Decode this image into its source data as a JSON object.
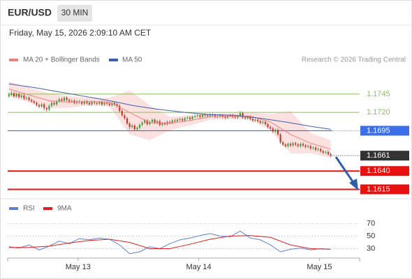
{
  "header": {
    "symbol": "EUR/USD",
    "interval": "30 MIN",
    "timestamp": "Friday, May 15, 2026 2:09:10 AM CET"
  },
  "chart_data": [
    {
      "type": "candlestick",
      "source": "Research © 2026 Trading Central",
      "xlim": [
        0,
        140
      ],
      "ylim": [
        1.1604,
        1.1783
      ],
      "up_color": "#3f9a3f",
      "down_color": "#c0392b",
      "resistance": [
        1.1745,
        {
          "value": 1.172,
          "label": "1.1720"
        }
      ],
      "resistance_color": "#8cc152",
      "pivot": 1.1695,
      "pivot_color": "#3b6ee8",
      "last_price": 1.1661,
      "last_price_color": "#333333",
      "support": [
        {
          "value": 1.164,
          "label": "1.1640"
        },
        1.1615
      ],
      "support_color": "#e8110f",
      "ohlc": [
        [
          1.1742,
          1.1747,
          1.174,
          1.1744
        ],
        [
          1.1744,
          1.1749,
          1.1742,
          1.1746
        ],
        [
          1.1746,
          1.1748,
          1.174,
          1.1742
        ],
        [
          1.1742,
          1.1747,
          1.174,
          1.1745
        ],
        [
          1.1745,
          1.1747,
          1.1739,
          1.1741
        ],
        [
          1.1741,
          1.1745,
          1.1739,
          1.1743
        ],
        [
          1.1743,
          1.1745,
          1.1737,
          1.1739
        ],
        [
          1.1739,
          1.1742,
          1.1737,
          1.174
        ],
        [
          1.174,
          1.1742,
          1.1735,
          1.1737
        ],
        [
          1.1737,
          1.1739,
          1.1733,
          1.1735
        ],
        [
          1.1735,
          1.1737,
          1.1731,
          1.1733
        ],
        [
          1.1733,
          1.1735,
          1.1728,
          1.173
        ],
        [
          1.173,
          1.1732,
          1.1726,
          1.1728
        ],
        [
          1.1728,
          1.1733,
          1.1726,
          1.1731
        ],
        [
          1.1731,
          1.1733,
          1.1723,
          1.1726
        ],
        [
          1.1726,
          1.1728,
          1.1721,
          1.1724
        ],
        [
          1.1724,
          1.1731,
          1.1722,
          1.1729
        ],
        [
          1.1729,
          1.1735,
          1.1727,
          1.1733
        ],
        [
          1.1733,
          1.1735,
          1.1729,
          1.1731
        ],
        [
          1.1731,
          1.1737,
          1.1729,
          1.1735
        ],
        [
          1.1735,
          1.174,
          1.1733,
          1.1738
        ],
        [
          1.1738,
          1.174,
          1.1734,
          1.1736
        ],
        [
          1.1736,
          1.1742,
          1.1734,
          1.174
        ],
        [
          1.174,
          1.1742,
          1.1735,
          1.1737
        ],
        [
          1.1737,
          1.1739,
          1.1733,
          1.1735
        ],
        [
          1.1735,
          1.1738,
          1.1733,
          1.1736
        ],
        [
          1.1736,
          1.1738,
          1.1731,
          1.1733
        ],
        [
          1.1733,
          1.1737,
          1.1731,
          1.1735
        ],
        [
          1.1735,
          1.1737,
          1.1732,
          1.1734
        ],
        [
          1.1734,
          1.1736,
          1.173,
          1.1732
        ],
        [
          1.1732,
          1.1737,
          1.173,
          1.1735
        ],
        [
          1.1735,
          1.1737,
          1.1731,
          1.1733
        ],
        [
          1.1733,
          1.1735,
          1.1729,
          1.1731
        ],
        [
          1.1731,
          1.1736,
          1.1729,
          1.1734
        ],
        [
          1.1734,
          1.1736,
          1.1731,
          1.1733
        ],
        [
          1.1733,
          1.1735,
          1.173,
          1.1732
        ],
        [
          1.1732,
          1.1736,
          1.173,
          1.1734
        ],
        [
          1.1734,
          1.1736,
          1.1729,
          1.1731
        ],
        [
          1.1731,
          1.1735,
          1.1729,
          1.1733
        ],
        [
          1.1733,
          1.1735,
          1.173,
          1.1732
        ],
        [
          1.1732,
          1.1734,
          1.1728,
          1.173
        ],
        [
          1.173,
          1.1735,
          1.1728,
          1.1733
        ],
        [
          1.1733,
          1.1735,
          1.1729,
          1.1731
        ],
        [
          1.1731,
          1.1733,
          1.1727,
          1.1729
        ],
        [
          1.1729,
          1.1731,
          1.172,
          1.1722
        ],
        [
          1.1722,
          1.1724,
          1.1714,
          1.1716
        ],
        [
          1.1716,
          1.1718,
          1.171,
          1.1712
        ],
        [
          1.1712,
          1.1714,
          1.1703,
          1.1705
        ],
        [
          1.1705,
          1.1707,
          1.1697,
          1.17
        ],
        [
          1.17,
          1.1704,
          1.1698,
          1.1702
        ],
        [
          1.1702,
          1.1704,
          1.1695,
          1.1697
        ],
        [
          1.1697,
          1.1701,
          1.1695,
          1.1699
        ],
        [
          1.1699,
          1.1705,
          1.1697,
          1.1703
        ],
        [
          1.1703,
          1.1708,
          1.1701,
          1.1706
        ],
        [
          1.1706,
          1.1711,
          1.1704,
          1.1709
        ],
        [
          1.1709,
          1.1711,
          1.1702,
          1.1704
        ],
        [
          1.1704,
          1.1709,
          1.1702,
          1.1707
        ],
        [
          1.1707,
          1.1712,
          1.1705,
          1.171
        ],
        [
          1.171,
          1.1712,
          1.1704,
          1.1706
        ],
        [
          1.1706,
          1.171,
          1.1704,
          1.1708
        ],
        [
          1.1708,
          1.171,
          1.1701,
          1.1703
        ],
        [
          1.1703,
          1.1707,
          1.1701,
          1.1705
        ],
        [
          1.1705,
          1.1707,
          1.1702,
          1.1704
        ],
        [
          1.1704,
          1.1709,
          1.1702,
          1.1707
        ],
        [
          1.1707,
          1.1709,
          1.1704,
          1.1706
        ],
        [
          1.1706,
          1.1711,
          1.1704,
          1.1709
        ],
        [
          1.1709,
          1.1711,
          1.1706,
          1.1708
        ],
        [
          1.1708,
          1.1712,
          1.1706,
          1.171
        ],
        [
          1.171,
          1.1713,
          1.1708,
          1.1711
        ],
        [
          1.1711,
          1.1713,
          1.1707,
          1.1709
        ],
        [
          1.1709,
          1.1714,
          1.1707,
          1.1712
        ],
        [
          1.1712,
          1.1715,
          1.171,
          1.1713
        ],
        [
          1.1713,
          1.1715,
          1.1709,
          1.1711
        ],
        [
          1.1711,
          1.1716,
          1.1709,
          1.1714
        ],
        [
          1.1714,
          1.1717,
          1.1712,
          1.1715
        ],
        [
          1.1715,
          1.1718,
          1.1713,
          1.1716
        ],
        [
          1.1716,
          1.1718,
          1.1712,
          1.1714
        ],
        [
          1.1714,
          1.1719,
          1.1712,
          1.1717
        ],
        [
          1.1717,
          1.1719,
          1.1714,
          1.1716
        ],
        [
          1.1716,
          1.1718,
          1.1713,
          1.1715
        ],
        [
          1.1715,
          1.1719,
          1.1713,
          1.1717
        ],
        [
          1.1717,
          1.1719,
          1.1714,
          1.1716
        ],
        [
          1.1716,
          1.1718,
          1.1712,
          1.1714
        ],
        [
          1.1714,
          1.1717,
          1.1712,
          1.1715
        ],
        [
          1.1715,
          1.1718,
          1.1713,
          1.1716
        ],
        [
          1.1716,
          1.1718,
          1.1712,
          1.1714
        ],
        [
          1.1714,
          1.1716,
          1.1711,
          1.1713
        ],
        [
          1.1713,
          1.1717,
          1.1711,
          1.1715
        ],
        [
          1.1715,
          1.1718,
          1.1713,
          1.1716
        ],
        [
          1.1716,
          1.1718,
          1.1712,
          1.1714
        ],
        [
          1.1714,
          1.1716,
          1.1711,
          1.1713
        ],
        [
          1.1713,
          1.1717,
          1.1711,
          1.1715
        ],
        [
          1.1715,
          1.1722,
          1.1713,
          1.1719
        ],
        [
          1.1719,
          1.1721,
          1.1711,
          1.1713
        ],
        [
          1.1713,
          1.1715,
          1.171,
          1.1712
        ],
        [
          1.1712,
          1.1716,
          1.171,
          1.1714
        ],
        [
          1.1714,
          1.1716,
          1.1709,
          1.1711
        ],
        [
          1.1711,
          1.1713,
          1.1707,
          1.1709
        ],
        [
          1.1709,
          1.1712,
          1.1707,
          1.171
        ],
        [
          1.171,
          1.1712,
          1.1706,
          1.1708
        ],
        [
          1.1708,
          1.171,
          1.1704,
          1.1706
        ],
        [
          1.1706,
          1.1709,
          1.1704,
          1.1707
        ],
        [
          1.1707,
          1.1709,
          1.1702,
          1.1704
        ],
        [
          1.1704,
          1.1706,
          1.1698,
          1.17
        ],
        [
          1.17,
          1.1702,
          1.1696,
          1.1698
        ],
        [
          1.1698,
          1.17,
          1.1692,
          1.1694
        ],
        [
          1.1694,
          1.1698,
          1.1692,
          1.1696
        ],
        [
          1.1696,
          1.1698,
          1.1688,
          1.169
        ],
        [
          1.169,
          1.1692,
          1.1677,
          1.1679
        ],
        [
          1.1679,
          1.1681,
          1.1674,
          1.1676
        ],
        [
          1.1676,
          1.1678,
          1.1672,
          1.1674
        ],
        [
          1.1674,
          1.1679,
          1.1672,
          1.1677
        ],
        [
          1.1677,
          1.1679,
          1.1673,
          1.1675
        ],
        [
          1.1675,
          1.168,
          1.1673,
          1.1678
        ],
        [
          1.1678,
          1.168,
          1.1674,
          1.1676
        ],
        [
          1.1676,
          1.1678,
          1.1672,
          1.1674
        ],
        [
          1.1674,
          1.1679,
          1.1672,
          1.1677
        ],
        [
          1.1677,
          1.1679,
          1.1673,
          1.1675
        ],
        [
          1.1675,
          1.1677,
          1.1671,
          1.1673
        ],
        [
          1.1673,
          1.1676,
          1.1671,
          1.1674
        ],
        [
          1.1674,
          1.1676,
          1.1669,
          1.1671
        ],
        [
          1.1671,
          1.1674,
          1.1669,
          1.1672
        ],
        [
          1.1672,
          1.1674,
          1.1667,
          1.1669
        ],
        [
          1.1669,
          1.1672,
          1.1667,
          1.167
        ],
        [
          1.167,
          1.1672,
          1.1665,
          1.1667
        ],
        [
          1.1667,
          1.1669,
          1.1663,
          1.1665
        ],
        [
          1.1665,
          1.1668,
          1.1663,
          1.1666
        ],
        [
          1.1666,
          1.1668,
          1.1661,
          1.1663
        ],
        [
          1.1663,
          1.1665,
          1.1659,
          1.1661
        ]
      ],
      "series": [
        {
          "name": "MA 20 + Bollinger Bands",
          "color": "#f08080",
          "band_color": "#fbd9d9",
          "x": [
            0,
            8,
            16,
            24,
            32,
            40,
            48,
            56,
            64,
            72,
            80,
            88,
            96,
            104,
            112,
            120,
            128
          ],
          "values": [
            1.1752,
            1.1744,
            1.1736,
            1.1734,
            1.1735,
            1.1734,
            1.172,
            1.1706,
            1.1705,
            1.1709,
            1.1714,
            1.1715,
            1.1715,
            1.1707,
            1.169,
            1.1678,
            1.167
          ],
          "upper": [
            1.1762,
            1.1754,
            1.1746,
            1.1742,
            1.174,
            1.174,
            1.175,
            1.173,
            1.1714,
            1.1716,
            1.1718,
            1.1719,
            1.172,
            1.1718,
            1.1722,
            1.1692,
            1.1682
          ],
          "lower": [
            1.1742,
            1.1734,
            1.1726,
            1.1726,
            1.173,
            1.1728,
            1.169,
            1.1682,
            1.1696,
            1.1702,
            1.171,
            1.1711,
            1.171,
            1.1696,
            1.1664,
            1.1664,
            1.1658
          ]
        },
        {
          "name": "MA 50",
          "color": "#3d5ea8",
          "x": [
            0,
            10,
            20,
            30,
            40,
            50,
            60,
            70,
            80,
            90,
            100,
            110,
            120,
            128
          ],
          "values": [
            1.1759,
            1.1754,
            1.1748,
            1.1742,
            1.1736,
            1.1729,
            1.1724,
            1.172,
            1.1717,
            1.1716,
            1.1712,
            1.1707,
            1.1701,
            1.1697
          ]
        }
      ]
    },
    {
      "type": "line",
      "xlim": [
        0,
        140
      ],
      "ylim": [
        15,
        95
      ],
      "yticks": [
        70,
        50,
        30
      ],
      "xticks": [
        {
          "value": 28,
          "label": "May 13"
        },
        {
          "value": 76,
          "label": "May 14"
        },
        {
          "value": 124,
          "label": "May 15"
        }
      ],
      "series": [
        {
          "name": "RSI",
          "color": "#5b7fd6",
          "x": [
            0,
            4,
            8,
            12,
            16,
            20,
            24,
            28,
            32,
            36,
            40,
            44,
            48,
            52,
            56,
            60,
            64,
            68,
            72,
            76,
            80,
            84,
            88,
            92,
            96,
            100,
            104,
            108,
            112,
            116,
            120,
            124,
            128
          ],
          "values": [
            33,
            31,
            36,
            28,
            34,
            42,
            38,
            46,
            44,
            47,
            45,
            36,
            22,
            25,
            33,
            30,
            38,
            44,
            47,
            51,
            54,
            50,
            49,
            58,
            47,
            44,
            36,
            25,
            29,
            31,
            28,
            30,
            29
          ]
        },
        {
          "name": "9MA",
          "color": "#e02020",
          "x": [
            0,
            8,
            16,
            24,
            32,
            40,
            48,
            56,
            64,
            72,
            80,
            88,
            96,
            104,
            112,
            120,
            128
          ],
          "values": [
            32,
            32,
            34,
            39,
            43,
            45,
            40,
            30,
            30,
            37,
            45,
            50,
            51,
            48,
            36,
            30,
            29
          ]
        }
      ]
    }
  ]
}
